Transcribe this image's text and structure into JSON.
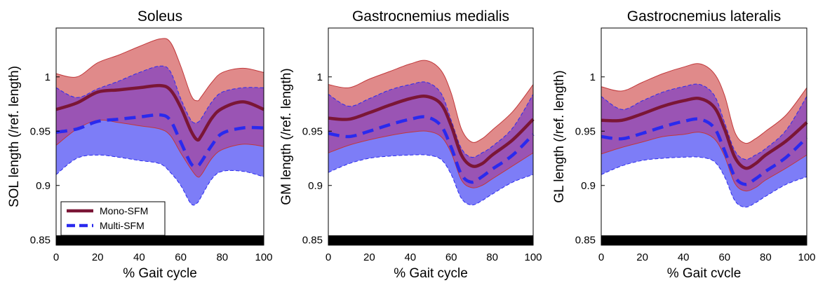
{
  "colors": {
    "mono_line": "#7a1636",
    "mono_band": "#e08a8a",
    "mono_band_edge": "#c0393b",
    "multi_line": "#2a2aee",
    "multi_band": "#7d7df7",
    "overlap": "#9a54b4",
    "bar": "#000000"
  },
  "legend": {
    "mono": "Mono-SFM",
    "multi": "Multi-SFM"
  },
  "chart_data": [
    {
      "type": "line",
      "title": "Soleus",
      "xlabel": "% Gait cycle",
      "ylabel": "SOL length (/ref. length)",
      "xlim": [
        0,
        100
      ],
      "ylim": [
        0.845,
        1.045
      ],
      "xticks": [
        "0",
        "20",
        "40",
        "60",
        "80",
        "100"
      ],
      "yticks": [
        "0.85",
        "0.9",
        "0.95",
        "1"
      ],
      "x": [
        0,
        10,
        20,
        30,
        40,
        50,
        55,
        60,
        65,
        68,
        70,
        75,
        80,
        90,
        100
      ],
      "series": [
        {
          "name": "Mono-SFM",
          "values": [
            0.97,
            0.976,
            0.986,
            0.988,
            0.99,
            0.992,
            0.988,
            0.972,
            0.95,
            0.942,
            0.946,
            0.962,
            0.971,
            0.977,
            0.97
          ],
          "upper": [
            1.003,
            1.0,
            1.013,
            1.02,
            1.028,
            1.035,
            1.032,
            1.01,
            0.983,
            0.978,
            0.982,
            0.995,
            1.004,
            1.008,
            1.004
          ],
          "lower": [
            0.937,
            0.952,
            0.96,
            0.958,
            0.955,
            0.952,
            0.946,
            0.93,
            0.915,
            0.908,
            0.91,
            0.925,
            0.933,
            0.938,
            0.936
          ]
        },
        {
          "name": "Multi-SFM",
          "values": [
            0.949,
            0.952,
            0.959,
            0.961,
            0.963,
            0.965,
            0.96,
            0.94,
            0.92,
            0.918,
            0.922,
            0.937,
            0.948,
            0.953,
            0.953
          ],
          "upper": [
            0.99,
            0.981,
            0.989,
            0.996,
            1.004,
            1.01,
            1.005,
            0.98,
            0.96,
            0.958,
            0.962,
            0.977,
            0.986,
            0.99,
            0.99
          ],
          "lower": [
            0.91,
            0.925,
            0.928,
            0.926,
            0.923,
            0.92,
            0.912,
            0.9,
            0.883,
            0.884,
            0.89,
            0.906,
            0.913,
            0.913,
            0.908
          ]
        }
      ]
    },
    {
      "type": "line",
      "title": "Gastrocnemius medialis",
      "xlabel": "% Gait cycle",
      "ylabel": "GM length (/ref. length)",
      "xlim": [
        0,
        100
      ],
      "ylim": [
        0.845,
        1.045
      ],
      "xticks": [
        "0",
        "20",
        "40",
        "60",
        "80",
        "100"
      ],
      "yticks": [
        "0.85",
        "0.9",
        "0.95",
        "1"
      ],
      "x": [
        0,
        10,
        20,
        30,
        40,
        48,
        55,
        60,
        65,
        70,
        75,
        80,
        90,
        100
      ],
      "series": [
        {
          "name": "Mono-SFM",
          "values": [
            0.962,
            0.961,
            0.967,
            0.974,
            0.98,
            0.982,
            0.975,
            0.955,
            0.928,
            0.918,
            0.92,
            0.928,
            0.942,
            0.961
          ],
          "upper": [
            0.993,
            0.99,
            0.998,
            1.005,
            1.012,
            1.015,
            1.006,
            0.985,
            0.952,
            0.94,
            0.943,
            0.951,
            0.968,
            0.993
          ],
          "lower": [
            0.93,
            0.937,
            0.942,
            0.946,
            0.949,
            0.95,
            0.945,
            0.93,
            0.905,
            0.898,
            0.9,
            0.906,
            0.918,
            0.93
          ]
        },
        {
          "name": "Multi-SFM",
          "values": [
            0.948,
            0.945,
            0.95,
            0.956,
            0.961,
            0.963,
            0.955,
            0.935,
            0.91,
            0.903,
            0.908,
            0.915,
            0.928,
            0.947
          ],
          "upper": [
            0.984,
            0.973,
            0.98,
            0.988,
            0.993,
            0.995,
            0.985,
            0.96,
            0.934,
            0.926,
            0.93,
            0.936,
            0.953,
            0.984
          ],
          "lower": [
            0.912,
            0.92,
            0.925,
            0.927,
            0.928,
            0.928,
            0.924,
            0.91,
            0.888,
            0.882,
            0.886,
            0.892,
            0.903,
            0.91
          ]
        }
      ]
    },
    {
      "type": "line",
      "title": "Gastrocnemius lateralis",
      "xlabel": "% Gait cvcle",
      "ylabel": "GL length (/ref. length)",
      "xlim": [
        0,
        100
      ],
      "ylim": [
        0.845,
        1.045
      ],
      "xticks": [
        "0",
        "20",
        "40",
        "60",
        "80",
        "100"
      ],
      "yticks": [
        "0.85",
        "0.9",
        "0.95",
        "1"
      ],
      "x": [
        0,
        10,
        20,
        30,
        40,
        48,
        55,
        60,
        65,
        70,
        75,
        80,
        90,
        100
      ],
      "series": [
        {
          "name": "Mono-SFM",
          "values": [
            0.96,
            0.96,
            0.966,
            0.973,
            0.978,
            0.98,
            0.972,
            0.952,
            0.926,
            0.916,
            0.92,
            0.928,
            0.941,
            0.958
          ],
          "upper": [
            0.991,
            0.987,
            0.995,
            1.003,
            1.009,
            1.012,
            1.003,
            0.983,
            0.949,
            0.939,
            0.943,
            0.95,
            0.965,
            0.99
          ],
          "lower": [
            0.929,
            0.935,
            0.94,
            0.945,
            0.947,
            0.949,
            0.943,
            0.927,
            0.902,
            0.895,
            0.898,
            0.905,
            0.916,
            0.928
          ]
        },
        {
          "name": "Multi-SFM",
          "values": [
            0.945,
            0.943,
            0.948,
            0.954,
            0.959,
            0.961,
            0.953,
            0.932,
            0.908,
            0.901,
            0.906,
            0.913,
            0.926,
            0.944
          ],
          "upper": [
            0.982,
            0.97,
            0.978,
            0.986,
            0.991,
            0.993,
            0.983,
            0.958,
            0.932,
            0.924,
            0.928,
            0.934,
            0.951,
            0.982
          ],
          "lower": [
            0.91,
            0.918,
            0.923,
            0.925,
            0.926,
            0.926,
            0.922,
            0.908,
            0.886,
            0.88,
            0.884,
            0.89,
            0.901,
            0.908
          ]
        }
      ]
    }
  ]
}
